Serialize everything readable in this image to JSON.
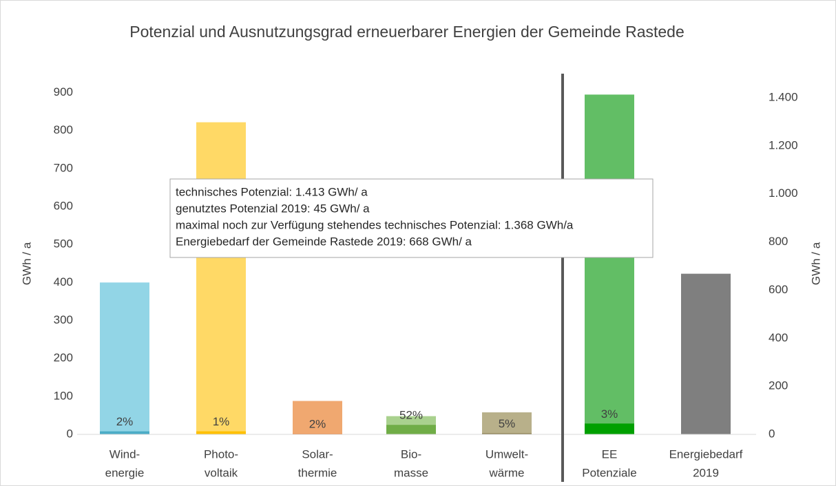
{
  "chart_data": {
    "type": "bar",
    "title": "Potenzial und Ausnutzungsgrad erneuerbarer Energien der Gemeinde Rastede",
    "ylabel": "GWh / a",
    "y2label": "GWh / a",
    "categories": [
      [
        "Wind-",
        "energie"
      ],
      [
        "Photo-",
        "voltaik"
      ],
      [
        "Solar-",
        "thermie"
      ],
      [
        "Bio-",
        "masse"
      ],
      [
        "Umwelt-",
        "wärme"
      ],
      [
        "EE",
        "Potenziale"
      ],
      [
        "Energiebedarf",
        "2019"
      ]
    ],
    "axes": [
      "y",
      "y",
      "y",
      "y",
      "y",
      "y2",
      "y2"
    ],
    "series": [
      {
        "color": [
          "#92d5e6",
          "#ffd966",
          "#f0a870",
          "#a9d18e",
          "#b8b08a",
          "#62be65",
          "#7f7f7f"
        ],
        "values": [
          400,
          822,
          88,
          48,
          58,
          1413,
          668
        ]
      },
      {
        "color": [
          "#4bacc6",
          "#ffc000",
          "#ed7d31",
          "#70ad47",
          "#8c7e50",
          "#00a000",
          null
        ],
        "values": [
          8,
          8,
          2,
          25,
          3,
          45,
          null
        ]
      }
    ],
    "data_labels": [
      "2%",
      "1%",
      "2%",
      "52%",
      "5%",
      "3%",
      null
    ],
    "ylim": [
      0,
      950
    ],
    "yticks": [
      0,
      100,
      200,
      300,
      400,
      500,
      600,
      700,
      800,
      900
    ],
    "y2lim": [
      0,
      1500
    ],
    "y2ticks": [
      0,
      200,
      400,
      600,
      800,
      {
        "value": 1000,
        "label": "1.000"
      },
      {
        "value": 1200,
        "label": "1.200"
      },
      {
        "value": 1400,
        "label": "1.400"
      }
    ],
    "annotation": [
      "technisches Potenzial: 1.413 GWh/ a",
      "genutztes Potenzial 2019: 45 GWh/ a",
      "maximal noch zur Verfügung stehendes technisches Potenzial: 1.368 GWh/a",
      "Energiebedarf der Gemeinde Rastede 2019: 668 GWh/ a"
    ]
  }
}
